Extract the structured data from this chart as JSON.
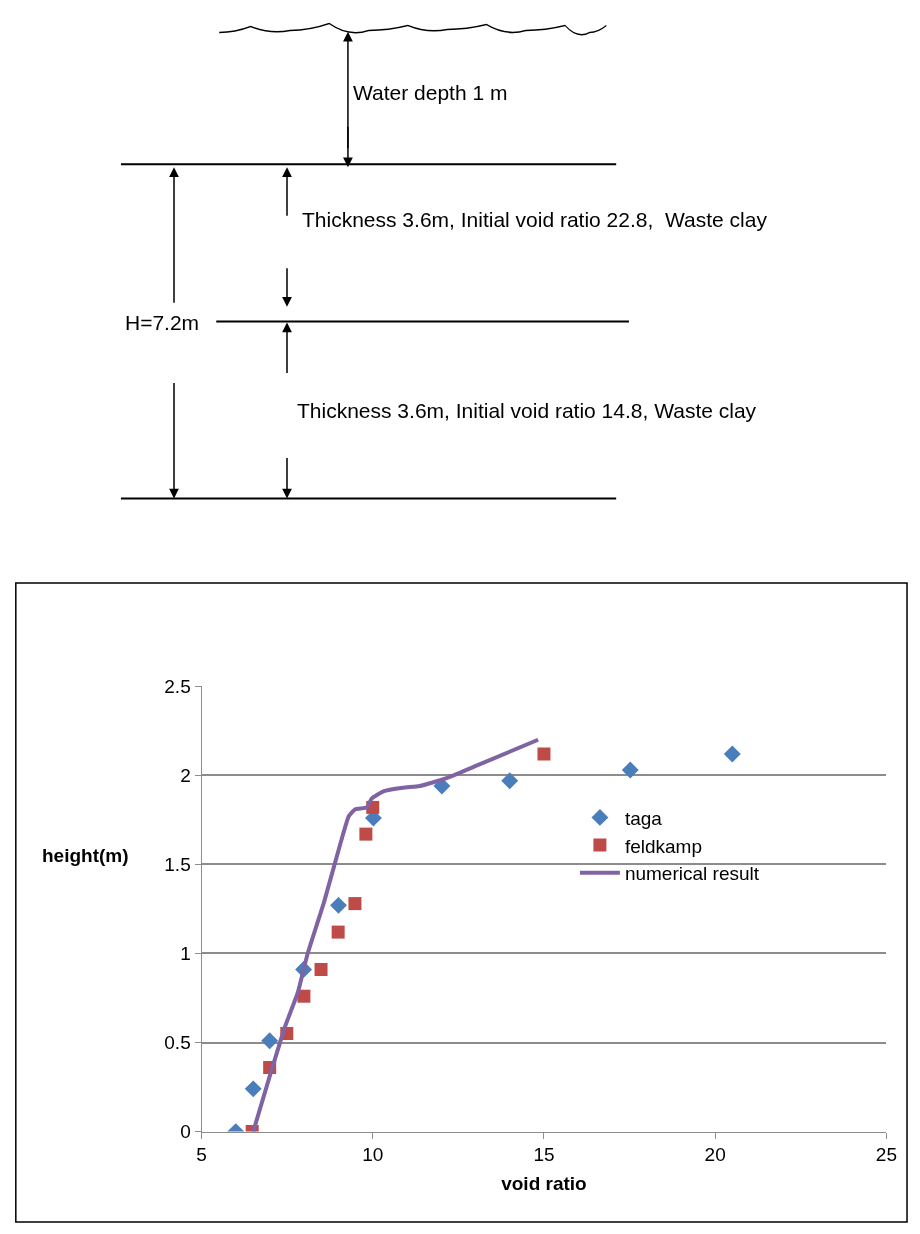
{
  "chart_data": {
    "type": "scatter",
    "xlabel": "void ratio",
    "ylabel": "height(m)",
    "annotations": [
      "Water depth 1 m",
      "Thickness 3.6m, Initial void ratio 22.8,  Waste clay",
      "H=7.2m",
      "Thickness 3.6m, Initial void ratio 14.8, Waste clay"
    ],
    "series": [
      {
        "name": "taga",
        "color": "#4a7ebb",
        "marker": "diamond",
        "x": [
          6.0,
          6.51,
          6.99,
          7.98,
          9.0,
          10.02,
          12.02,
          14.0,
          17.52,
          20.5
        ],
        "values": [
          0,
          0.24,
          0.51,
          0.91,
          1.27,
          1.76,
          1.94,
          1.97,
          2.03,
          2.12
        ]
      },
      {
        "name": "feldkamp",
        "color": "#be4b48",
        "marker": "square",
        "x": [
          6.48,
          6.99,
          7.49,
          7.99,
          8.49,
          8.99,
          9.48,
          9.8,
          10.0,
          15.0
        ],
        "values": [
          0,
          0.36,
          0.55,
          0.76,
          0.91,
          1.12,
          1.28,
          1.67,
          1.82,
          2.12
        ]
      },
      {
        "name": "numerical result",
        "type": "line",
        "color": "#7f63a2",
        "marker": "none",
        "line_style": "solid",
        "x": [
          6.51,
          6.99,
          7.44,
          7.81,
          8.1,
          8.58,
          9.06,
          9.3,
          9.49,
          9.83,
          9.97,
          10.31,
          10.88,
          11.37,
          11.75,
          12.23,
          13.1,
          14.83
        ],
        "values": [
          0,
          0.31,
          0.59,
          0.78,
          1.0,
          1.29,
          1.62,
          1.77,
          1.81,
          1.82,
          1.87,
          1.91,
          1.93,
          1.94,
          1.96,
          1.99,
          2.06,
          2.2
        ]
      }
    ],
    "xlim": [
      5,
      25
    ],
    "xticks": [
      5,
      10,
      15,
      20,
      25
    ],
    "ylim": [
      0,
      2.5
    ],
    "yticks": [
      0,
      0.5,
      1,
      1.5,
      2,
      2.5
    ],
    "grid": "y",
    "legend": "right"
  }
}
